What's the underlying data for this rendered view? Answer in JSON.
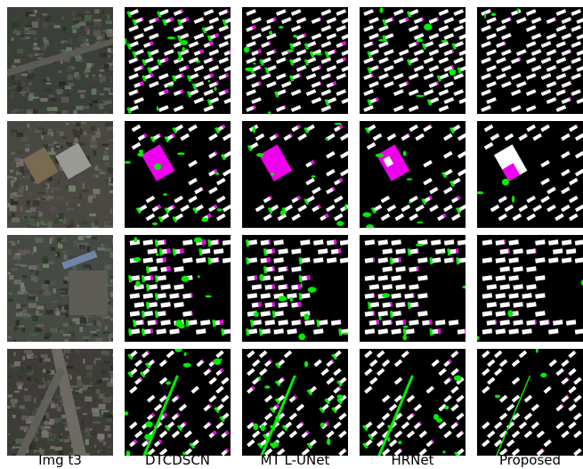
{
  "figure": {
    "columns": [
      {
        "label": "Img t3",
        "kind": "satellite"
      },
      {
        "label": "DTCDSCN",
        "kind": "changemap"
      },
      {
        "label": "MT L-UNet",
        "kind": "changemap"
      },
      {
        "label": "HRNet",
        "kind": "changemap"
      },
      {
        "label": "Proposed",
        "kind": "changemap"
      }
    ],
    "rows": [
      {
        "scene": "dense-residential-blocks"
      },
      {
        "scene": "large-building-complex"
      },
      {
        "scene": "residential-with-open-field"
      },
      {
        "scene": "road-intersection-residential"
      }
    ],
    "colors": {
      "background": "#000000",
      "true_positive": "#ffffff",
      "false_positive": "#00ee00",
      "false_negative": "#ee00ee"
    }
  }
}
